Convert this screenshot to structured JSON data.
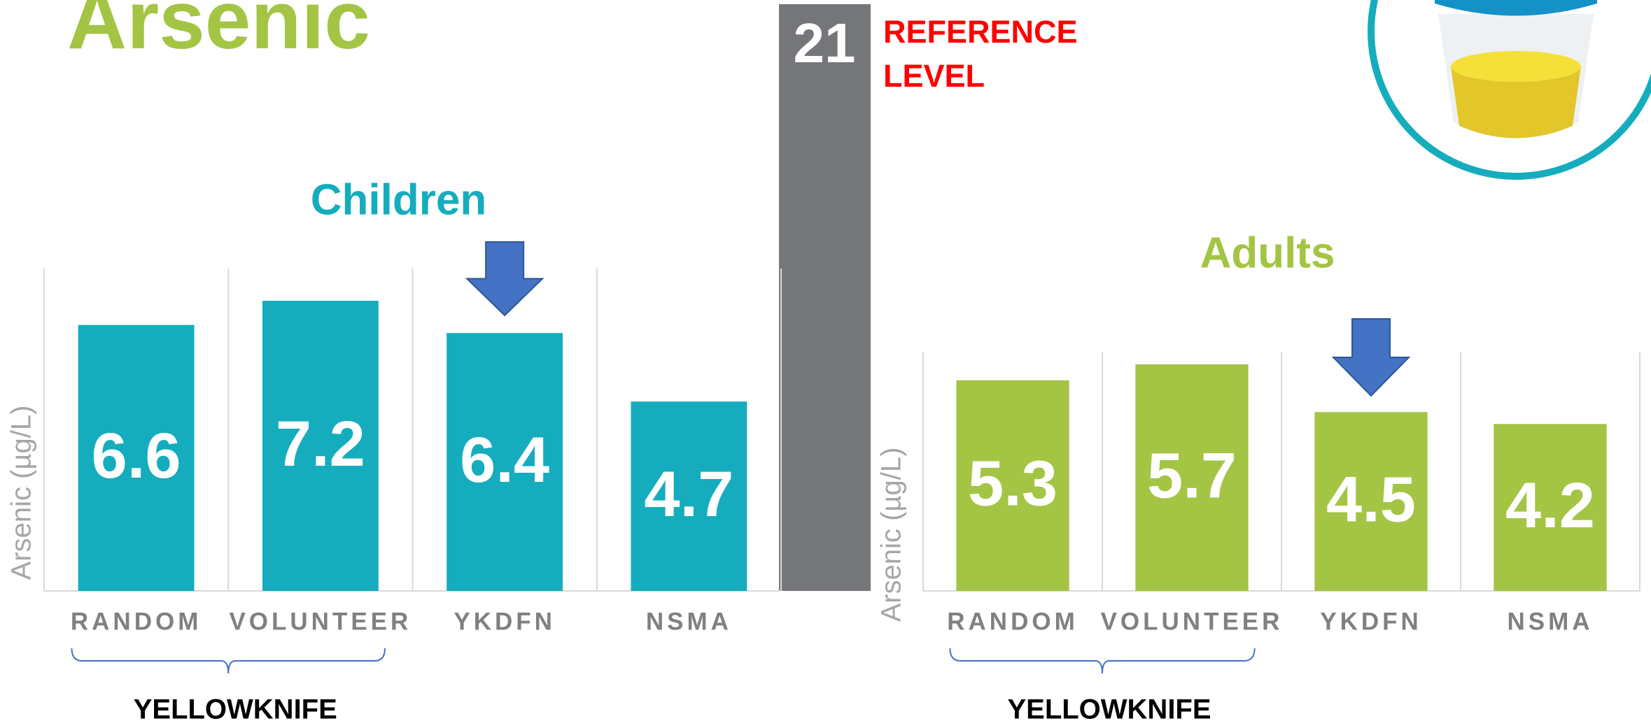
{
  "title": "Arsenic",
  "reference_level": {
    "value": 21,
    "label": "REFERENCE LEVEL",
    "color": "#75767a"
  },
  "chart_data": [
    {
      "type": "bar",
      "title": "Children",
      "y_label": "Arsenic (µg/L)",
      "categories": [
        "RANDOM",
        "VOLUNTEER",
        "YKDFN",
        "NSMA"
      ],
      "values": [
        6.6,
        7.2,
        6.4,
        4.7
      ],
      "color": "#15adbd",
      "ylim": [
        0,
        8
      ],
      "group_label": "YELLOWKNIFE"
    },
    {
      "type": "bar",
      "title": "Adults",
      "y_label": "Arsenic (µg/L)",
      "categories": [
        "RANDOM",
        "VOLUNTEER",
        "YKDFN",
        "NSMA"
      ],
      "values": [
        5.3,
        5.7,
        4.5,
        4.2
      ],
      "color": "#a4c444",
      "ylim": [
        0,
        6
      ],
      "group_label": "YELLOWKNIFE"
    }
  ]
}
